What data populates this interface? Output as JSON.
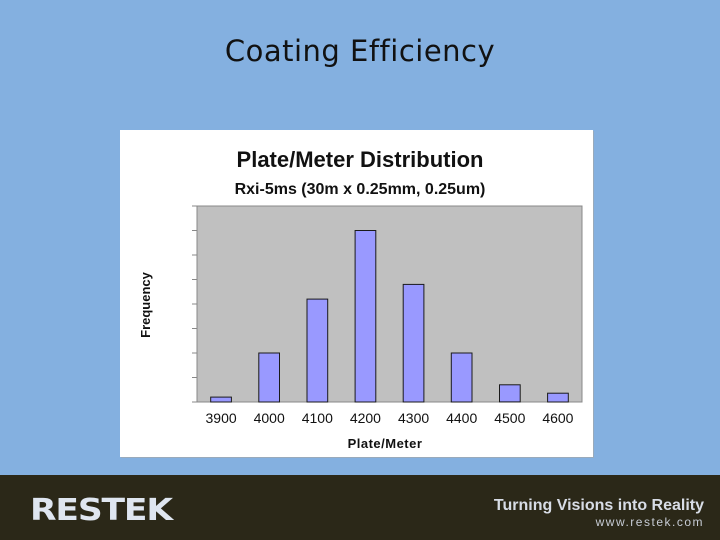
{
  "slide": {
    "title": "Coating Efficiency"
  },
  "chart_data": {
    "type": "bar",
    "title": "Plate/Meter Distribution",
    "subtitle": "Rxi-5ms (30m x 0.25mm, 0.25um)",
    "xlabel": "Plate/Meter",
    "ylabel": "Frequency",
    "categories": [
      "3900",
      "4000",
      "4100",
      "4200",
      "4300",
      "4400",
      "4500",
      "4600"
    ],
    "values": [
      1,
      10,
      21,
      35,
      24,
      10,
      3.5,
      1.8
    ],
    "ylim": [
      0,
      40
    ],
    "grid": false,
    "legend": "none",
    "colors": {
      "bar": "#9999ff",
      "bar_edge": "#1a1a1a",
      "plot_bg": "#c0c0c0"
    }
  },
  "footer": {
    "logo_text": "RESTEK",
    "tagline": "Turning Visions into Reality",
    "website": "www.restek.com",
    "colors": {
      "background": "#2b2818",
      "text": "#d8dde6"
    }
  }
}
